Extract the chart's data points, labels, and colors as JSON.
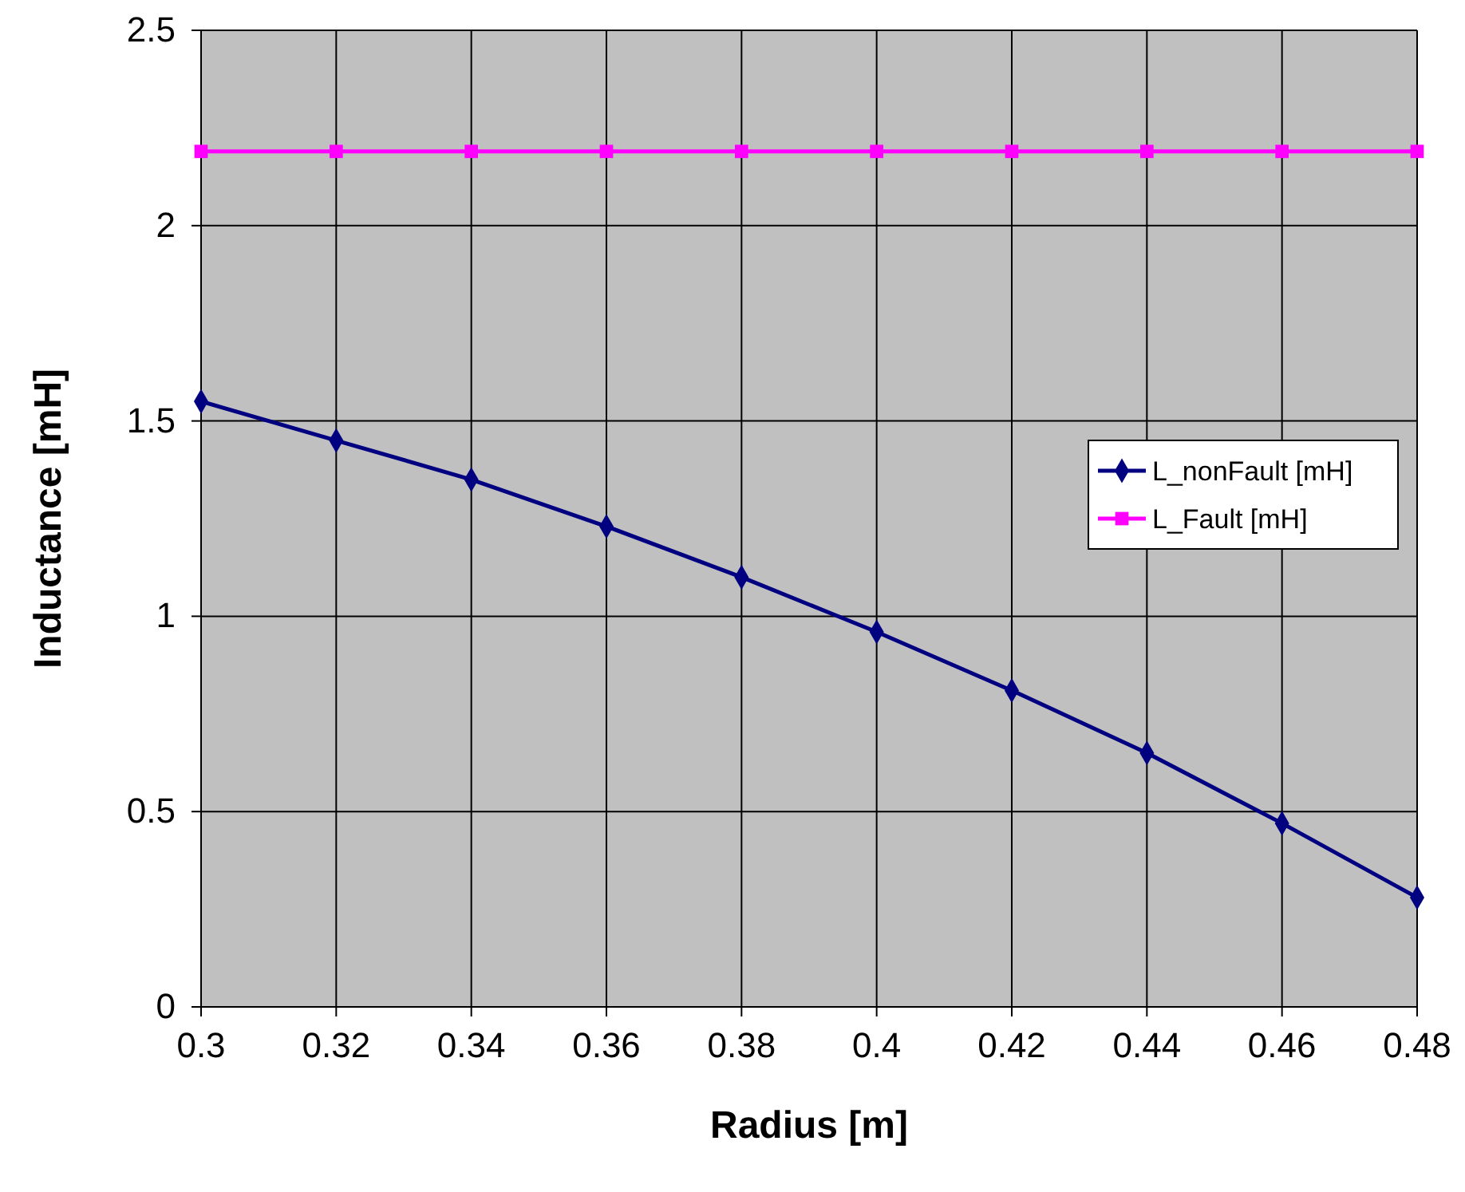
{
  "chart_data": {
    "type": "line",
    "xlabel": "Radius [m]",
    "ylabel": "Inductance [mH]",
    "x": [
      0.3,
      0.32,
      0.34,
      0.36,
      0.38,
      0.4,
      0.42,
      0.44,
      0.46,
      0.48
    ],
    "series": [
      {
        "name": "L_nonFault [mH]",
        "color": "#000080",
        "marker": "diamond",
        "values": [
          1.55,
          1.45,
          1.35,
          1.23,
          1.1,
          0.96,
          0.81,
          0.65,
          0.47,
          0.28
        ]
      },
      {
        "name": "L_Fault [mH]",
        "color": "#ff00ff",
        "marker": "square",
        "values": [
          2.19,
          2.19,
          2.19,
          2.19,
          2.19,
          2.19,
          2.19,
          2.19,
          2.19,
          2.19
        ]
      }
    ],
    "xlim": [
      0.3,
      0.48
    ],
    "xticks": [
      0.3,
      0.32,
      0.34,
      0.36,
      0.38,
      0.4,
      0.42,
      0.44,
      0.46,
      0.48
    ],
    "ylim": [
      0,
      2.5
    ],
    "yticks": [
      0,
      0.5,
      1,
      1.5,
      2,
      2.5
    ],
    "grid": true,
    "legend": "right",
    "line_style": "solid"
  }
}
